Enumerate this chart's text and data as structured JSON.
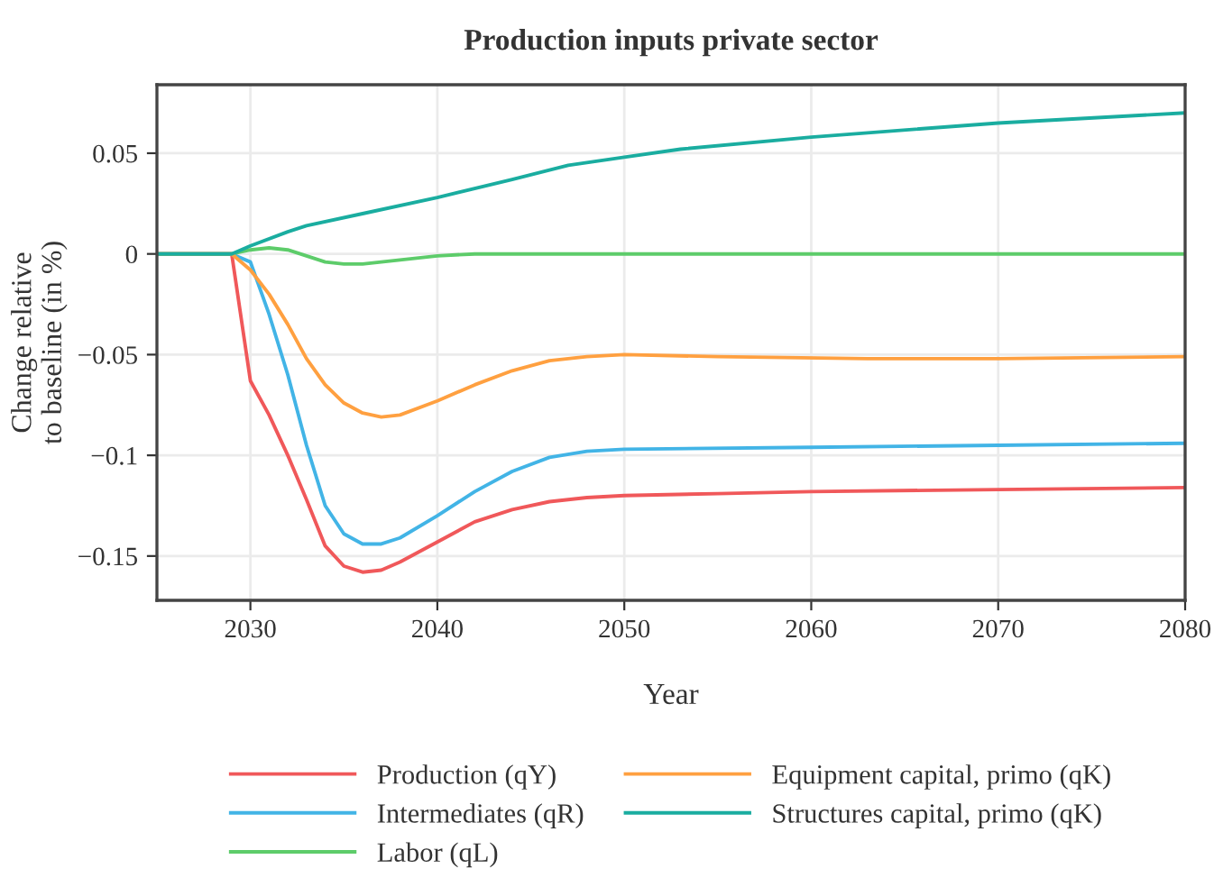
{
  "chart_data": {
    "type": "line",
    "title": "Production inputs private sector",
    "xlabel": "Year",
    "ylabel": "Change relative\nto baseline (in %)",
    "xlim": [
      2025,
      2080
    ],
    "xticks": [
      2030,
      2040,
      2050,
      2060,
      2070,
      2080
    ],
    "ylim": [
      -0.172,
      0.084
    ],
    "yticks": [
      {
        "value": -0.15,
        "label": "−0.15"
      },
      {
        "value": -0.1,
        "label": "−0.1"
      },
      {
        "value": -0.05,
        "label": "−0.05"
      },
      0,
      0.05
    ],
    "grid": true,
    "legend": "bottom",
    "line_style": "solid",
    "marker": "none",
    "series": [
      {
        "name": "Production (qY)",
        "color": "#f0585a",
        "x": [
          2025,
          2029,
          2030,
          2031,
          2032,
          2033,
          2034,
          2035,
          2036,
          2037,
          2038,
          2040,
          2042,
          2044,
          2046,
          2048,
          2050,
          2055,
          2060,
          2070,
          2080
        ],
        "values": [
          0,
          0,
          -0.063,
          -0.08,
          -0.1,
          -0.122,
          -0.145,
          -0.155,
          -0.158,
          -0.157,
          -0.153,
          -0.143,
          -0.133,
          -0.127,
          -0.123,
          -0.121,
          -0.12,
          -0.119,
          -0.118,
          -0.117,
          -0.116
        ]
      },
      {
        "name": "Intermediates (qR)",
        "color": "#42b4e6",
        "x": [
          2025,
          2029,
          2030,
          2031,
          2032,
          2033,
          2034,
          2035,
          2036,
          2037,
          2038,
          2040,
          2042,
          2044,
          2046,
          2048,
          2050,
          2060,
          2070,
          2080
        ],
        "values": [
          0,
          0,
          -0.004,
          -0.03,
          -0.06,
          -0.095,
          -0.125,
          -0.139,
          -0.144,
          -0.144,
          -0.141,
          -0.13,
          -0.118,
          -0.108,
          -0.101,
          -0.098,
          -0.097,
          -0.096,
          -0.095,
          -0.094
        ]
      },
      {
        "name": "Labor (qL)",
        "color": "#5dcc6a",
        "x": [
          2025,
          2029,
          2030,
          2031,
          2032,
          2033,
          2034,
          2035,
          2036,
          2038,
          2040,
          2042,
          2050,
          2080
        ],
        "values": [
          0,
          0,
          0.002,
          0.003,
          0.002,
          -0.001,
          -0.004,
          -0.005,
          -0.005,
          -0.003,
          -0.001,
          0,
          0,
          0
        ]
      },
      {
        "name": "Equipment capital, primo (qK)",
        "color": "#ffa040",
        "x": [
          2025,
          2029,
          2030,
          2031,
          2032,
          2033,
          2034,
          2035,
          2036,
          2037,
          2038,
          2040,
          2042,
          2044,
          2046,
          2048,
          2050,
          2055,
          2063,
          2070,
          2080
        ],
        "values": [
          0,
          0,
          -0.008,
          -0.02,
          -0.035,
          -0.052,
          -0.065,
          -0.074,
          -0.079,
          -0.081,
          -0.08,
          -0.073,
          -0.065,
          -0.058,
          -0.053,
          -0.051,
          -0.05,
          -0.051,
          -0.052,
          -0.052,
          -0.051
        ]
      },
      {
        "name": "Structures capital, primo (qK)",
        "color": "#1aada0",
        "x": [
          2025,
          2029,
          2030,
          2032,
          2033,
          2036,
          2040,
          2044,
          2047,
          2050,
          2053,
          2060,
          2070,
          2080
        ],
        "values": [
          0,
          0,
          0.004,
          0.011,
          0.014,
          0.02,
          0.028,
          0.037,
          0.044,
          0.048,
          0.052,
          0.058,
          0.065,
          0.07
        ]
      }
    ]
  }
}
